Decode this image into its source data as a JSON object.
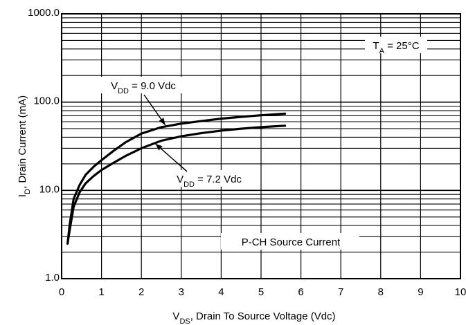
{
  "chart_data": {
    "type": "line",
    "xlabel": {
      "main": "V",
      "sub": "DS",
      "rest": ", Drain To Source Voltage (Vdc)"
    },
    "ylabel": {
      "main": "I",
      "sub": "D",
      "rest": ", Drain Current (mA)"
    },
    "xlim": [
      0,
      10
    ],
    "ylim": [
      1,
      1000
    ],
    "yscale": "log",
    "xticks": [
      "0",
      "1",
      "2",
      "3",
      "4",
      "5",
      "6",
      "7",
      "8",
      "9",
      "10"
    ],
    "yticks": [
      {
        "value": 1,
        "label": "1.0"
      },
      {
        "value": 10,
        "label": "10.0"
      },
      {
        "value": 100,
        "label": "100.0"
      },
      {
        "value": 1000,
        "label": "1000.0"
      }
    ],
    "grid": true,
    "series": [
      {
        "name": {
          "main": "V",
          "sub": "DD",
          "rest": " = 9.0 Vdc"
        },
        "x": [
          0.15,
          0.2,
          0.3,
          0.45,
          0.6,
          0.8,
          1.0,
          1.3,
          1.6,
          2.0,
          2.5,
          3.0,
          3.5,
          4.0,
          4.5,
          5.0,
          5.6
        ],
        "y": [
          2.5,
          4.0,
          8.0,
          11.5,
          15.0,
          18.5,
          22.0,
          28.0,
          35.0,
          44.0,
          52.0,
          57.0,
          61.0,
          65.0,
          68.0,
          71.0,
          74.0
        ]
      },
      {
        "name": {
          "main": "V",
          "sub": "DD",
          "rest": " = 7.2 Vdc"
        },
        "x": [
          0.15,
          0.2,
          0.3,
          0.45,
          0.6,
          0.8,
          1.0,
          1.3,
          1.6,
          2.0,
          2.5,
          3.0,
          3.5,
          4.0,
          4.5,
          5.0,
          5.6
        ],
        "y": [
          2.5,
          3.5,
          6.5,
          9.5,
          12.0,
          14.5,
          17.0,
          20.5,
          24.5,
          30.0,
          36.5,
          41.0,
          44.5,
          47.5,
          50.0,
          52.0,
          54.0
        ]
      }
    ],
    "annotations": {
      "temperature": {
        "main": "T",
        "sub": "A",
        "rest": " = 25°C"
      },
      "caption": "P-CH Source Current"
    }
  }
}
